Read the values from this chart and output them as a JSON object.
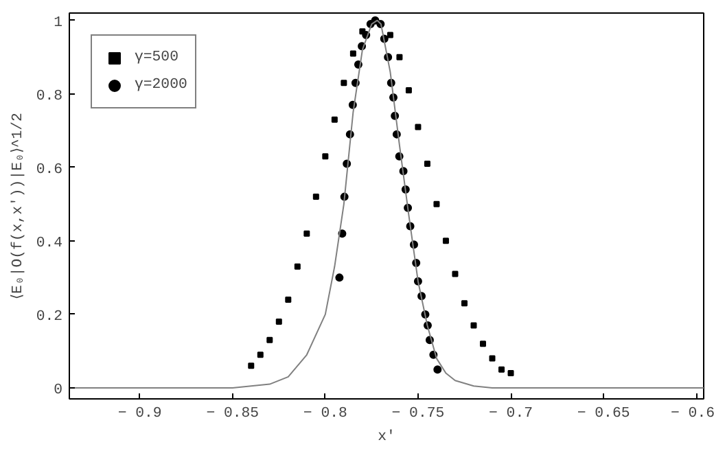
{
  "chart_data": {
    "type": "scatter",
    "xlabel": "x′",
    "ylabel": "⟨E₀|O(f(x,x′))|E₀⟩^1/2",
    "xlim": [
      -0.938,
      -0.596
    ],
    "ylim": [
      -0.03,
      1.02
    ],
    "xticks": [
      -0.9,
      -0.85,
      -0.8,
      -0.75,
      -0.7,
      -0.65,
      -0.6
    ],
    "yticks": [
      0,
      0.2,
      0.4,
      0.6,
      0.8,
      1
    ],
    "grid": false,
    "legend": "top left",
    "series": [
      {
        "name": "γ=500",
        "marker": "square",
        "color": "#000000",
        "x": [
          -0.84,
          -0.835,
          -0.83,
          -0.825,
          -0.82,
          -0.815,
          -0.81,
          -0.805,
          -0.8,
          -0.795,
          -0.79,
          -0.785,
          -0.78,
          -0.775,
          -0.77,
          -0.765,
          -0.76,
          -0.755,
          -0.75,
          -0.745,
          -0.74,
          -0.735,
          -0.73,
          -0.725,
          -0.72,
          -0.715,
          -0.71,
          -0.705,
          -0.7
        ],
        "values": [
          0.06,
          0.09,
          0.13,
          0.18,
          0.24,
          0.33,
          0.42,
          0.52,
          0.63,
          0.73,
          0.83,
          0.91,
          0.97,
          null,
          null,
          0.96,
          0.9,
          0.81,
          0.71,
          0.61,
          0.5,
          0.4,
          0.31,
          0.23,
          0.17,
          0.12,
          0.08,
          0.05,
          0.04
        ]
      },
      {
        "name": "γ=2000",
        "marker": "circle",
        "color": "#000000",
        "x": [
          -0.7924,
          -0.7909,
          -0.7897,
          -0.7884,
          -0.7867,
          -0.7852,
          -0.7837,
          -0.7822,
          -0.7803,
          -0.778,
          -0.7756,
          -0.7731,
          -0.7702,
          -0.7682,
          -0.7662,
          -0.7645,
          -0.7633,
          -0.7625,
          -0.7615,
          -0.7601,
          -0.7579,
          -0.7567,
          -0.7555,
          -0.7542,
          -0.7522,
          -0.751,
          -0.75,
          -0.7481,
          -0.7461,
          -0.7448,
          -0.7437,
          -0.7417,
          -0.7395
        ],
        "values": [
          0.3,
          0.42,
          0.52,
          0.61,
          0.69,
          0.77,
          0.83,
          0.88,
          0.93,
          0.96,
          0.99,
          1.0,
          0.99,
          0.95,
          0.9,
          0.83,
          0.79,
          0.74,
          0.69,
          0.63,
          0.59,
          0.54,
          0.49,
          0.44,
          0.39,
          0.34,
          0.29,
          0.25,
          0.2,
          0.17,
          0.13,
          0.09,
          0.05
        ]
      },
      {
        "type": "line",
        "marker": "none",
        "color": "#808080",
        "x": [
          -0.938,
          -0.85,
          -0.83,
          -0.82,
          -0.81,
          -0.8,
          -0.795,
          -0.79,
          -0.785,
          -0.78,
          -0.775,
          -0.772,
          -0.77,
          -0.765,
          -0.76,
          -0.755,
          -0.75,
          -0.745,
          -0.74,
          -0.735,
          -0.73,
          -0.72,
          -0.71,
          -0.596
        ],
        "values": [
          0,
          0,
          0.01,
          0.03,
          0.09,
          0.2,
          0.33,
          0.5,
          0.75,
          0.92,
          0.99,
          1.0,
          0.99,
          0.86,
          0.66,
          0.47,
          0.29,
          0.17,
          0.08,
          0.04,
          0.02,
          0.005,
          0,
          0
        ]
      }
    ]
  }
}
